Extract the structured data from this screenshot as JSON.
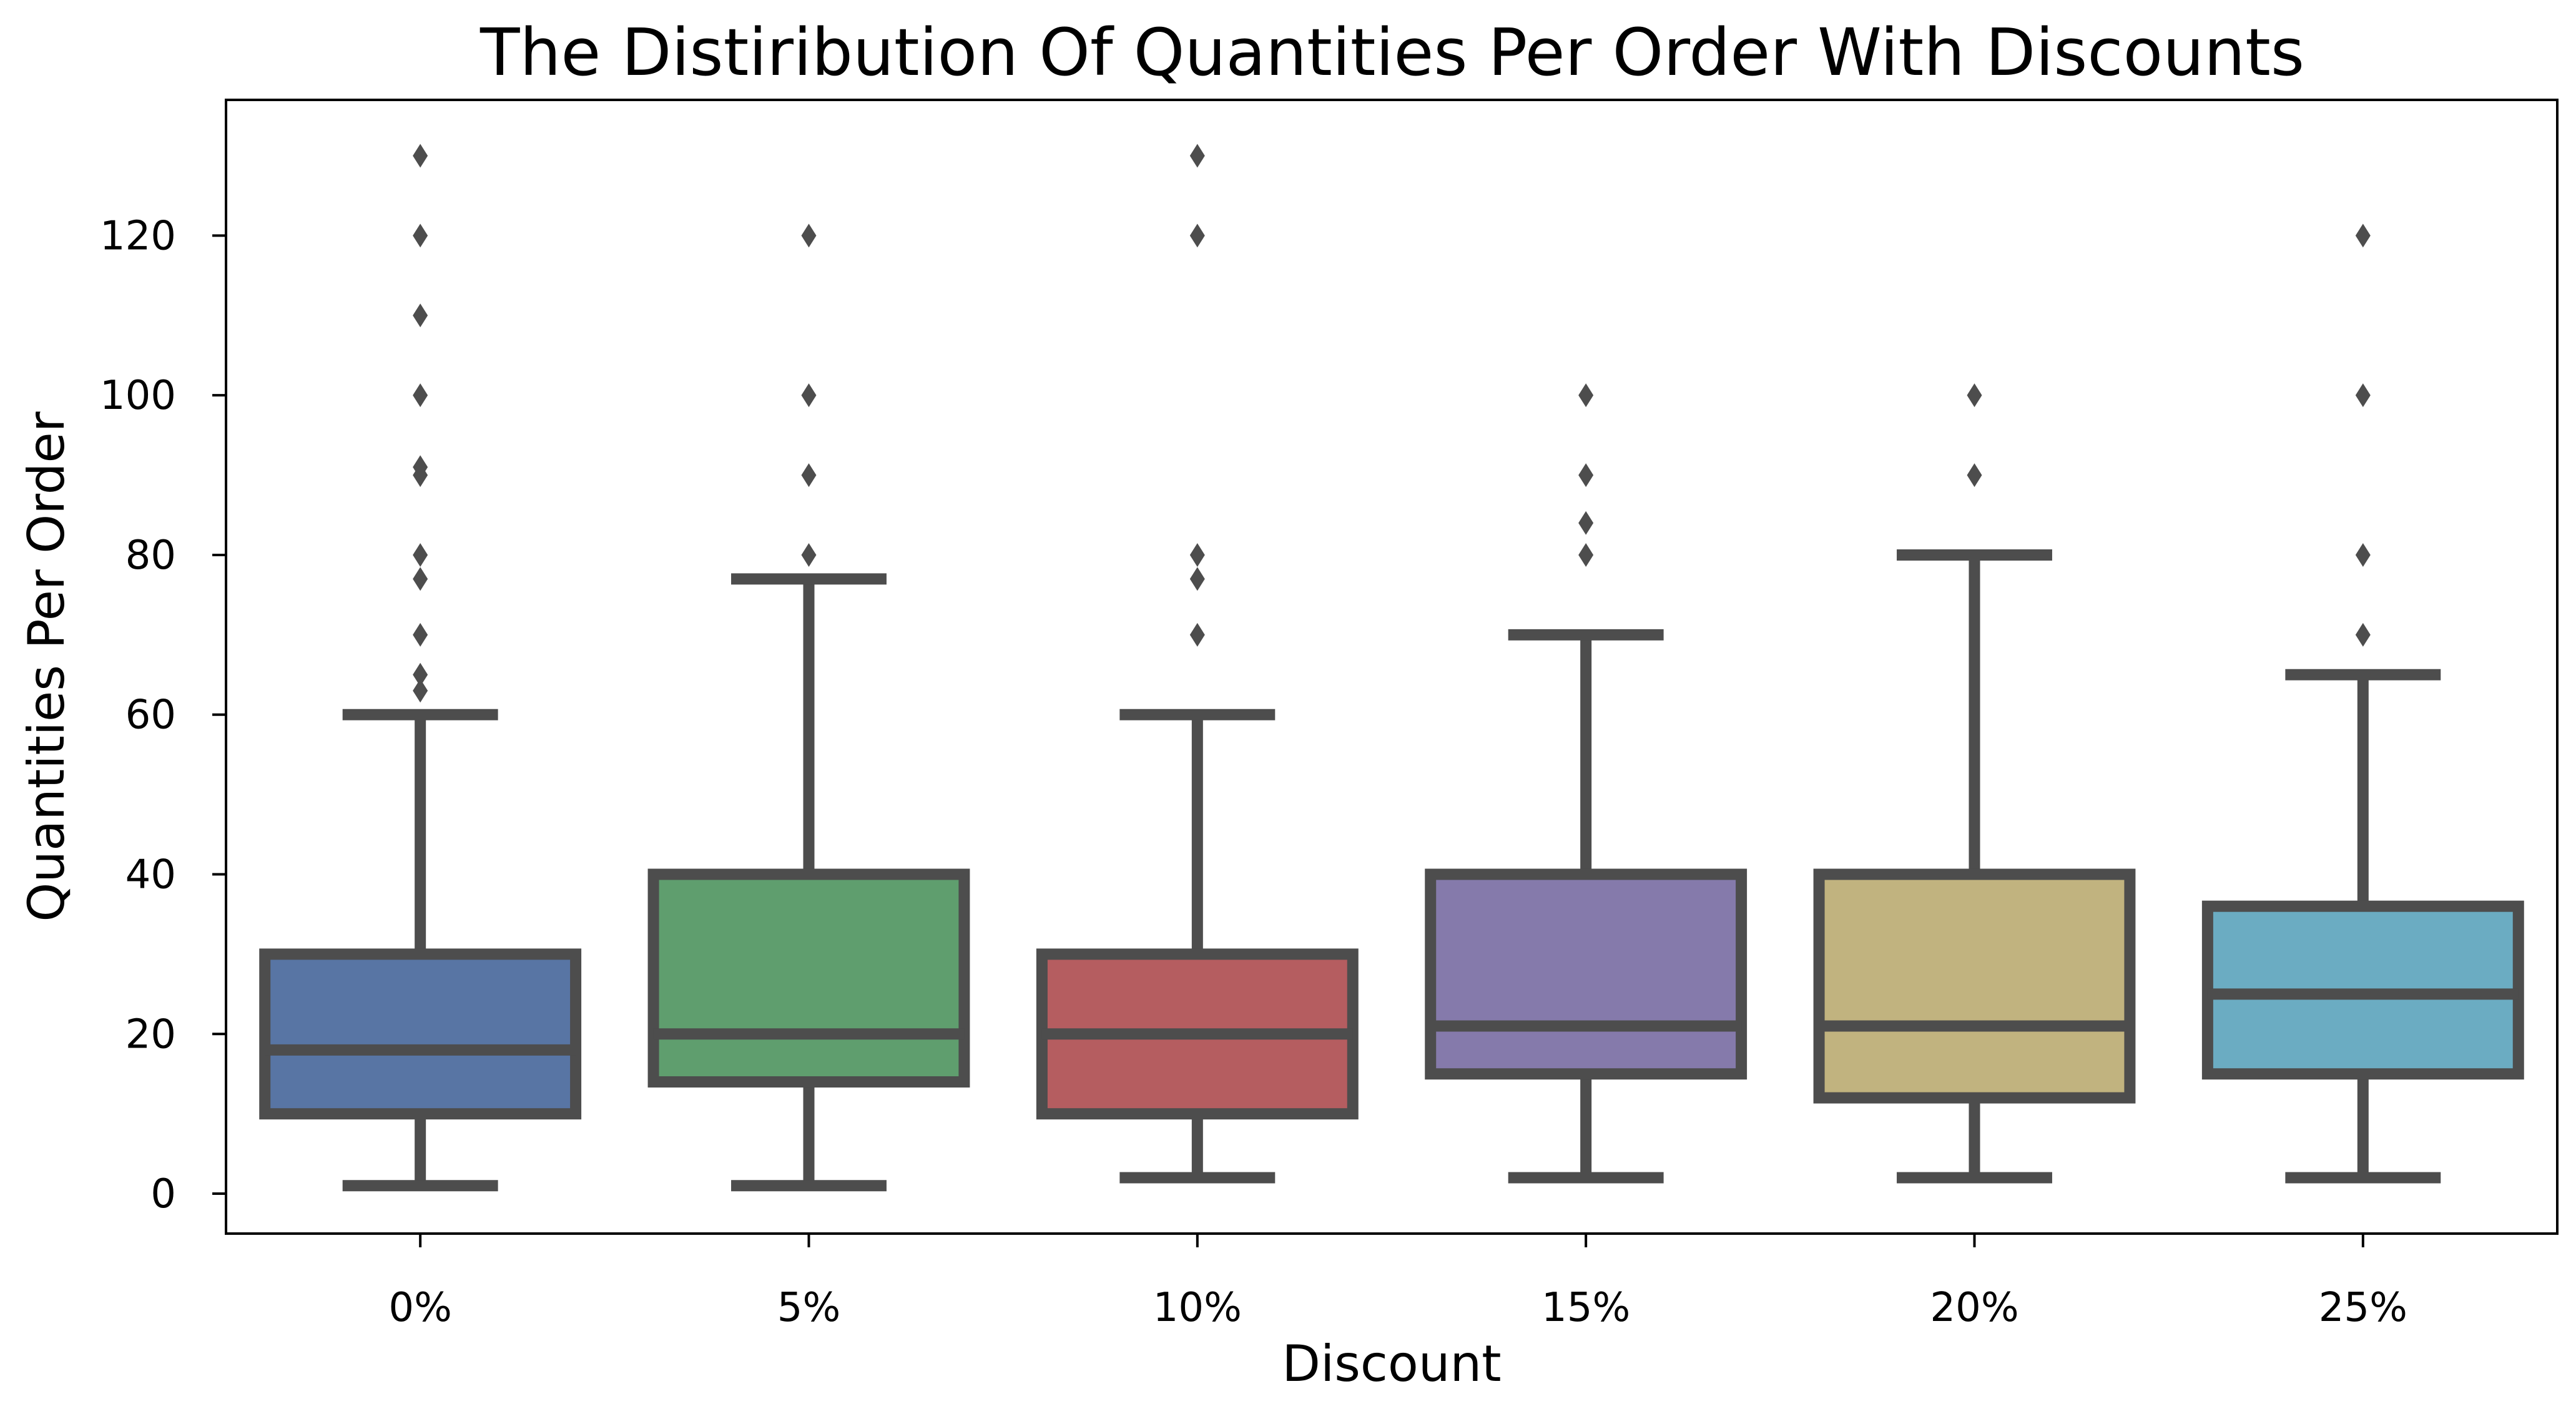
{
  "chart_data": {
    "type": "box",
    "title": "The Distiribution Of Quantities Per Order With Discounts",
    "xlabel": "Discount",
    "ylabel": "Quantities Per Order",
    "ylim": [
      -5,
      137
    ],
    "yticks": [
      0,
      20,
      40,
      60,
      80,
      100,
      120
    ],
    "grid": false,
    "categories": [
      "0%",
      "5%",
      "10%",
      "15%",
      "20%",
      "25%"
    ],
    "colors": [
      "#5875a4",
      "#5f9e6e",
      "#b55d60",
      "#857aab",
      "#c1b37f",
      "#6bacc2"
    ],
    "boxes": [
      {
        "whislo": 1,
        "q1": 10,
        "med": 18,
        "q3": 30,
        "whishi": 60,
        "fliers": [
          63,
          65,
          70,
          77,
          80,
          90,
          91,
          100,
          110,
          120,
          130
        ]
      },
      {
        "whislo": 1,
        "q1": 14,
        "med": 20,
        "q3": 40,
        "whishi": 77,
        "fliers": [
          80,
          90,
          100,
          120
        ]
      },
      {
        "whislo": 2,
        "q1": 10,
        "med": 20,
        "q3": 30,
        "whishi": 60,
        "fliers": [
          70,
          77,
          80,
          120,
          130
        ]
      },
      {
        "whislo": 2,
        "q1": 15,
        "med": 21,
        "q3": 40,
        "whishi": 70,
        "fliers": [
          80,
          84,
          90,
          100
        ]
      },
      {
        "whislo": 2,
        "q1": 12,
        "med": 21,
        "q3": 40,
        "whishi": 80,
        "fliers": [
          90,
          100
        ]
      },
      {
        "whislo": 2,
        "q1": 15,
        "med": 25,
        "q3": 36,
        "whishi": 65,
        "fliers": [
          70,
          80,
          100,
          120
        ]
      }
    ]
  }
}
